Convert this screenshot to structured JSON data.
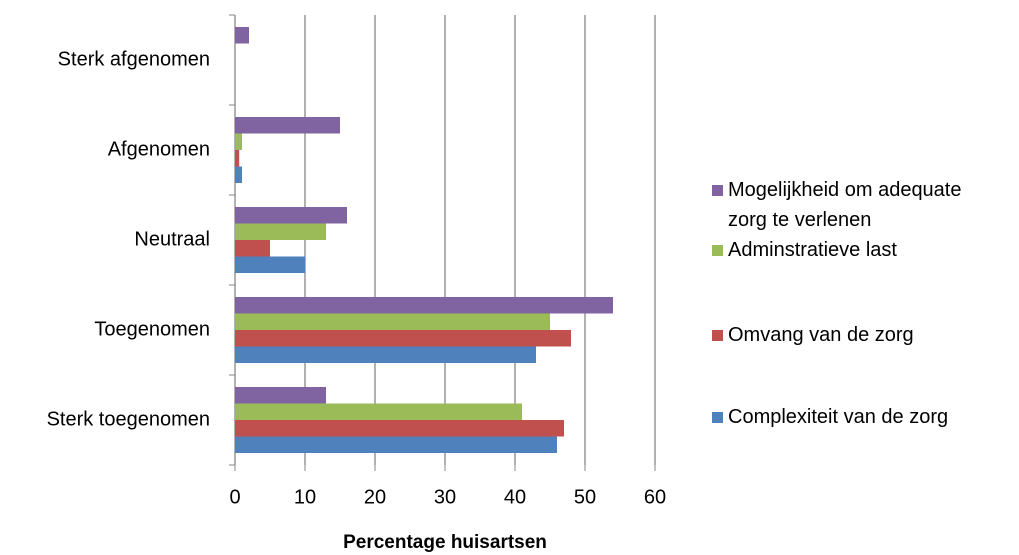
{
  "chart_data": {
    "type": "bar",
    "orientation": "horizontal",
    "categories": [
      "Sterk toegenomen",
      "Toegenomen",
      "Neutraal",
      "Afgenomen",
      "Sterk afgenomen"
    ],
    "series": [
      {
        "name": "Complexiteit van de zorg",
        "color": "#4f81bd",
        "values": [
          46,
          43,
          10,
          1,
          0
        ]
      },
      {
        "name": "Omvang van de zorg",
        "color": "#c0504d",
        "values": [
          47,
          48,
          5,
          0.6,
          0
        ]
      },
      {
        "name": "Adminstratieve last",
        "color": "#9bbb59",
        "values": [
          41,
          45,
          13,
          1,
          0
        ]
      },
      {
        "name": "Mogelijkheid om adequate zorg te verlenen",
        "color": "#8064a2",
        "values": [
          13,
          54,
          16,
          15,
          2
        ]
      }
    ],
    "xlabel": "Percentage huisartsen",
    "xlim": [
      0,
      60
    ],
    "xticks": [
      0,
      10,
      20,
      30,
      40,
      50,
      60
    ],
    "grid": true,
    "legend": "right"
  }
}
